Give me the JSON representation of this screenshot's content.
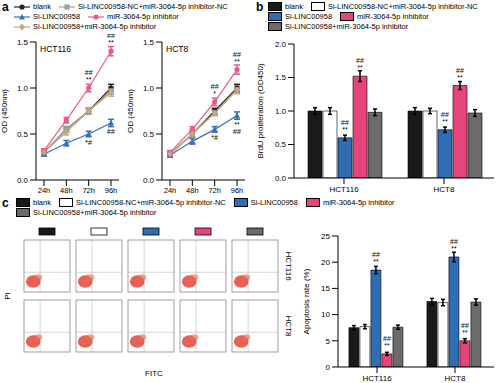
{
  "chart_data": [
    {
      "type": "line",
      "panel": "a",
      "title": "HCT116",
      "y_label": "OD (450nm)",
      "categories": [
        "24h",
        "48h",
        "72h",
        "96h"
      ],
      "ylim": [
        0,
        1.5
      ],
      "yticks": [
        {
          "value": 0,
          "label": "0.0"
        },
        0.5,
        {
          "value": 1,
          "label": "1.0"
        },
        1.5
      ],
      "legend": "top",
      "series": [
        {
          "name": "blank",
          "color": "#222222",
          "marker": "circle",
          "values": [
            0.3,
            0.55,
            0.75,
            1.0
          ],
          "errors": [
            0.02,
            0.03,
            0.03,
            0.04
          ],
          "annotations": [
            null,
            null,
            null,
            null
          ]
        },
        {
          "name": "Si-LINC00958-NC+miR-3064-5p inhibitor-NC",
          "color": "#9e9e9e",
          "marker": "square",
          "values": [
            0.3,
            0.55,
            0.75,
            0.97
          ],
          "errors": [
            0.02,
            0.03,
            0.03,
            0.04
          ],
          "annotations": [
            null,
            null,
            null,
            null
          ]
        },
        {
          "name": "Si-LINC00958",
          "color": "#3a6fb5",
          "marker": "triangle",
          "values": [
            0.28,
            0.4,
            0.5,
            0.62
          ],
          "errors": [
            0.02,
            0.03,
            0.03,
            0.04
          ],
          "annotations": [
            null,
            null,
            [
              "*#"
            ],
            [
              "##"
            ]
          ]
        },
        {
          "name": "miR-3064-5p inhibitor",
          "color": "#e85a8c",
          "marker": "circle",
          "values": [
            0.32,
            0.65,
            1.0,
            1.4
          ],
          "errors": [
            0.02,
            0.03,
            0.04,
            0.05
          ],
          "annotations": [
            null,
            null,
            [
              "##",
              "**"
            ],
            [
              "##",
              "**"
            ]
          ]
        },
        {
          "name": "Si-LINC00958+miR-3064-5p inhibitor",
          "color": "#c9a77c",
          "marker": "diamond",
          "values": [
            0.3,
            0.52,
            0.75,
            0.95
          ],
          "errors": [
            0.02,
            0.03,
            0.03,
            0.04
          ],
          "annotations": [
            null,
            null,
            null,
            null
          ]
        }
      ]
    },
    {
      "type": "line",
      "title": "HCT8",
      "y_label": "OD (450nm)",
      "categories": [
        "24h",
        "48h",
        "72h",
        "96h"
      ],
      "ylim": [
        0,
        1.5
      ],
      "yticks": [
        {
          "value": 0,
          "label": "0.0"
        },
        0.5,
        {
          "value": 1,
          "label": "1.0"
        },
        1.5
      ],
      "series": [
        {
          "name": "blank",
          "color": "#222222",
          "marker": "circle",
          "values": [
            0.28,
            0.5,
            0.75,
            1.0
          ],
          "errors": [
            0.02,
            0.03,
            0.03,
            0.04
          ],
          "annotations": [
            null,
            null,
            null,
            null
          ]
        },
        {
          "name": "Si-LINC00958-NC+miR-3064-5p inhibitor-NC",
          "color": "#9e9e9e",
          "marker": "square",
          "values": [
            0.28,
            0.5,
            0.73,
            0.98
          ],
          "errors": [
            0.02,
            0.03,
            0.03,
            0.04
          ],
          "annotations": [
            null,
            null,
            null,
            null
          ]
        },
        {
          "name": "Si-LINC00958",
          "color": "#3a6fb5",
          "marker": "triangle",
          "values": [
            0.27,
            0.42,
            0.55,
            0.7
          ],
          "errors": [
            0.02,
            0.03,
            0.03,
            0.04
          ],
          "annotations": [
            null,
            null,
            [
              "*#"
            ],
            [
              "**",
              "##"
            ]
          ]
        },
        {
          "name": "miR-3064-5p inhibitor",
          "color": "#e85a8c",
          "marker": "circle",
          "values": [
            0.3,
            0.55,
            0.85,
            1.2
          ],
          "errors": [
            0.02,
            0.03,
            0.04,
            0.05
          ],
          "annotations": [
            null,
            null,
            [
              "##",
              "*"
            ],
            [
              "##",
              "**"
            ]
          ]
        },
        {
          "name": "Si-LINC00958+miR-3064-5p inhibitor",
          "color": "#c9a77c",
          "marker": "diamond",
          "values": [
            0.28,
            0.5,
            0.73,
            0.98
          ],
          "errors": [
            0.02,
            0.03,
            0.03,
            0.04
          ],
          "annotations": [
            null,
            null,
            null,
            null
          ]
        }
      ]
    },
    {
      "type": "bar",
      "panel": "b",
      "y_label": "BrdU proliferation (OD450)",
      "categories": [
        "HCT116",
        "HCT8"
      ],
      "ylim": [
        0,
        2
      ],
      "yticks": [
        {
          "value": 0,
          "label": "0.0"
        },
        0.5,
        {
          "value": 1,
          "label": "1.0"
        },
        1.5,
        {
          "value": 2,
          "label": "2.0"
        }
      ],
      "legend": "top",
      "series": [
        {
          "name": "blank",
          "color": "#1a1a1a",
          "values": [
            1.0,
            1.0
          ],
          "errors": [
            0.05,
            0.05
          ],
          "annotations": [
            null,
            null
          ]
        },
        {
          "name": "Si-LINC00958-NC+miR-3064-5p inhibitor-NC",
          "color": "#ffffff",
          "values": [
            1.0,
            1.0
          ],
          "errors": [
            0.05,
            0.04
          ],
          "annotations": [
            null,
            null
          ]
        },
        {
          "name": "Si-LINC00958",
          "color": "#2f6db5",
          "values": [
            0.6,
            0.72
          ],
          "errors": [
            0.04,
            0.04
          ],
          "annotations": [
            [
              "##",
              "**"
            ],
            [
              "##",
              "**"
            ]
          ]
        },
        {
          "name": "miR-3064-5p inhibitor",
          "color": "#e6457c",
          "values": [
            1.52,
            1.38
          ],
          "errors": [
            0.08,
            0.06
          ],
          "annotations": [
            [
              "##",
              "**"
            ],
            [
              "##",
              "**"
            ]
          ]
        },
        {
          "name": "Si-LINC00958+miR-3064-5p inhibitor",
          "color": "#6b6b6b",
          "values": [
            0.98,
            0.97
          ],
          "errors": [
            0.05,
            0.05
          ],
          "annotations": [
            null,
            null
          ]
        }
      ]
    },
    {
      "type": "image",
      "panel": "c",
      "x_label": "FITC",
      "y_label": "PI",
      "rows": [
        "HCT116",
        "HCT8"
      ],
      "colors": [
        "#1a1a1a",
        "#ffffff",
        "#2f6db5",
        "#e6457c",
        "#6b6b6b"
      ]
    },
    {
      "type": "bar",
      "y_label": "Apoptosis rate (%)",
      "categories": [
        "HCT116",
        "HCT8"
      ],
      "ylim": [
        0,
        25
      ],
      "yticks": [
        0,
        5,
        10,
        15,
        20,
        25
      ],
      "legend": "top",
      "series": [
        {
          "name": "blank",
          "color": "#1a1a1a",
          "values": [
            7.5,
            12.5
          ],
          "errors": [
            0.4,
            0.6
          ],
          "annotations": [
            null,
            null
          ]
        },
        {
          "name": "Si-LINC00958-NC+miR-3064-5p inhibitor-NC",
          "color": "#ffffff",
          "values": [
            7.7,
            12.3
          ],
          "errors": [
            0.4,
            0.6
          ],
          "annotations": [
            null,
            null
          ]
        },
        {
          "name": "Si-LINC00958",
          "color": "#2f6db5",
          "values": [
            18.5,
            21.0
          ],
          "errors": [
            0.7,
            0.9
          ],
          "annotations": [
            [
              "##",
              "**"
            ],
            [
              "##",
              "**"
            ]
          ]
        },
        {
          "name": "miR-3064-5p inhibitor",
          "color": "#e6457c",
          "values": [
            2.5,
            5.0
          ],
          "errors": [
            0.3,
            0.4
          ],
          "annotations": [
            [
              "##",
              "**"
            ],
            [
              "##",
              "**"
            ]
          ]
        },
        {
          "name": "Si-LINC00958+miR-3064-5p inhibitor",
          "color": "#6b6b6b",
          "values": [
            7.6,
            12.4
          ],
          "errors": [
            0.4,
            0.6
          ],
          "annotations": [
            null,
            null
          ]
        }
      ]
    }
  ]
}
